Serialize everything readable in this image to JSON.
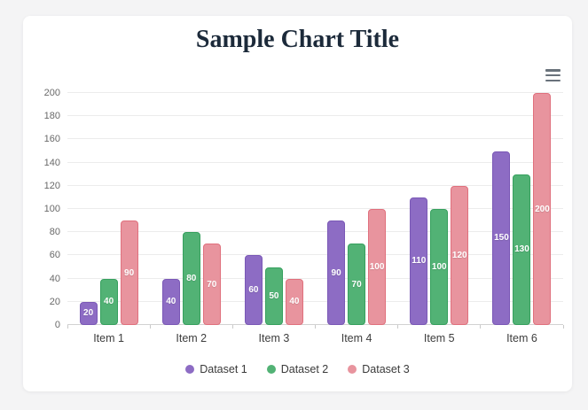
{
  "page": {
    "background_color": "#f4f4f5",
    "card_background": "#ffffff"
  },
  "menu": {
    "icon": "hamburger-icon"
  },
  "chart_data": {
    "type": "bar",
    "title": "Sample Chart Title",
    "title_color": "#1c2a3a",
    "categories": [
      "Item 1",
      "Item 2",
      "Item 3",
      "Item 4",
      "Item 5",
      "Item 6"
    ],
    "series": [
      {
        "name": "Dataset 1",
        "color": "#8d6cc4",
        "border_color": "#7a58b6",
        "values": [
          20,
          40,
          60,
          90,
          110,
          150
        ]
      },
      {
        "name": "Dataset 2",
        "color": "#52b275",
        "border_color": "#36a05e",
        "values": [
          40,
          80,
          50,
          70,
          100,
          130
        ]
      },
      {
        "name": "Dataset 3",
        "color": "#e8949e",
        "border_color": "#e0707d",
        "values": [
          90,
          70,
          40,
          100,
          120,
          200
        ]
      }
    ],
    "yticks": [
      "0",
      "20",
      "40",
      "60",
      "80",
      "100",
      "120",
      "140",
      "160",
      "180",
      "200"
    ],
    "ylim": [
      0,
      200
    ],
    "ytick_step": 20,
    "grid": true,
    "legend_position": "bottom",
    "bar_value_labels": true
  }
}
